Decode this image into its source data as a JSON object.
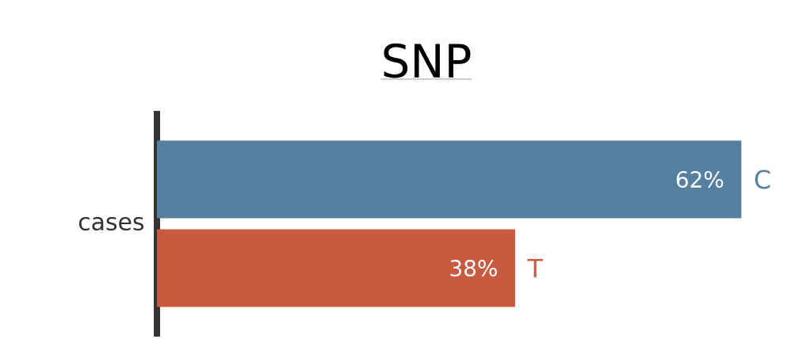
{
  "chart_data": {
    "type": "bar",
    "title": "SNP",
    "orientation": "horizontal",
    "categories": [
      "cases"
    ],
    "series": [
      {
        "name": "C",
        "color": "#5580a0",
        "values": [
          62
        ],
        "value_labels": [
          "62%"
        ]
      },
      {
        "name": "T",
        "color": "#c85a40",
        "values": [
          38
        ],
        "value_labels": [
          "38%"
        ]
      }
    ]
  }
}
